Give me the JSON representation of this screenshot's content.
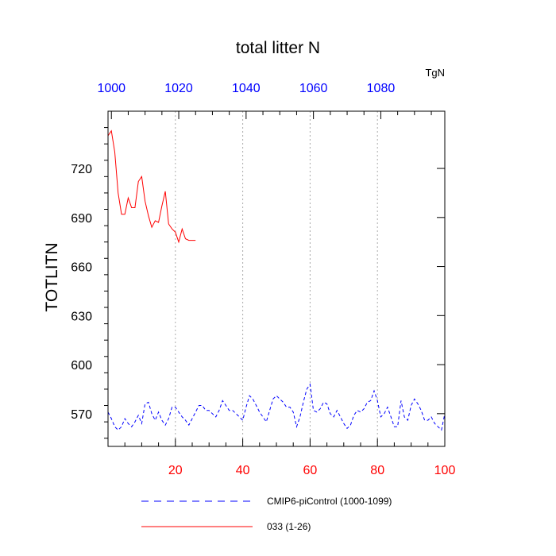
{
  "chart_data": {
    "type": "line",
    "title": "total litter N",
    "units": "TgN",
    "ylabel": "TOTLITN",
    "xlabel": "",
    "xlim": [
      0,
      100
    ],
    "ylim": [
      550,
      755
    ],
    "top_xlim": [
      999,
      1099
    ],
    "yticks": [
      570,
      600,
      630,
      660,
      690,
      720
    ],
    "ytick_labels": [
      "570",
      "600",
      "630",
      "660",
      "690",
      "720"
    ],
    "xticks_bottom": [
      20,
      40,
      60,
      80,
      100
    ],
    "xtick_labels_bottom": [
      "20",
      "40",
      "60",
      "80",
      "100"
    ],
    "xticks_top": [
      1000,
      1020,
      1040,
      1060,
      1080
    ],
    "xtick_labels_top": [
      "1000",
      "1020",
      "1040",
      "1060",
      "1080"
    ],
    "grid": "vertical dotted at major ticks",
    "legend_position": "bottom",
    "colors": {
      "bottom_axis": "#ff0000",
      "top_axis": "#0000ff"
    },
    "series": [
      {
        "name": "CMIP6-piControl (1000-1099)",
        "color": "#0000ff",
        "style": "dashed",
        "x": [
          0,
          1,
          2,
          3,
          4,
          5,
          6,
          7,
          8,
          9,
          10,
          11,
          12,
          13,
          14,
          15,
          16,
          17,
          18,
          19,
          20,
          21,
          22,
          23,
          24,
          25,
          26,
          27,
          28,
          29,
          30,
          31,
          32,
          33,
          34,
          35,
          36,
          37,
          38,
          39,
          40,
          41,
          42,
          43,
          44,
          45,
          46,
          47,
          48,
          49,
          50,
          51,
          52,
          53,
          54,
          55,
          56,
          57,
          58,
          59,
          60,
          61,
          62,
          63,
          64,
          65,
          66,
          67,
          68,
          69,
          70,
          71,
          72,
          73,
          74,
          75,
          76,
          77,
          78,
          79,
          80,
          81,
          82,
          83,
          84,
          85,
          86,
          87,
          88,
          89,
          90,
          91,
          92,
          93,
          94,
          95,
          96,
          97,
          98,
          99,
          100
        ],
        "values": [
          571,
          567,
          562,
          560,
          562,
          567,
          564,
          562,
          565,
          569,
          564,
          576,
          577,
          570,
          566,
          571,
          566,
          563,
          567,
          574,
          574,
          571,
          568,
          566,
          563,
          567,
          571,
          575,
          575,
          572,
          572,
          570,
          568,
          572,
          578,
          575,
          572,
          572,
          570,
          568,
          566,
          574,
          581,
          579,
          575,
          571,
          568,
          565,
          572,
          579,
          581,
          579,
          577,
          574,
          574,
          571,
          562,
          568,
          577,
          585,
          588,
          572,
          571,
          573,
          577,
          576,
          570,
          568,
          572,
          568,
          564,
          561,
          563,
          569,
          572,
          571,
          573,
          577,
          578,
          584,
          578,
          568,
          570,
          574,
          568,
          562,
          562,
          578,
          568,
          566,
          575,
          579,
          576,
          572,
          566,
          566,
          568,
          564,
          562,
          560,
          570
        ]
      },
      {
        "name": "033 (1-26)",
        "color": "#ff0000",
        "style": "solid",
        "x": [
          0,
          1,
          2,
          3,
          4,
          5,
          6,
          7,
          8,
          9,
          10,
          11,
          12,
          13,
          14,
          15,
          16,
          17,
          18,
          19,
          20,
          21,
          22,
          23,
          24,
          25,
          26
        ],
        "values": [
          740,
          743,
          730,
          705,
          692,
          692,
          702,
          696,
          696,
          712,
          715,
          700,
          691,
          684,
          688,
          687,
          697,
          706,
          686,
          683,
          681,
          675,
          683,
          677,
          676,
          676,
          676
        ]
      }
    ]
  }
}
